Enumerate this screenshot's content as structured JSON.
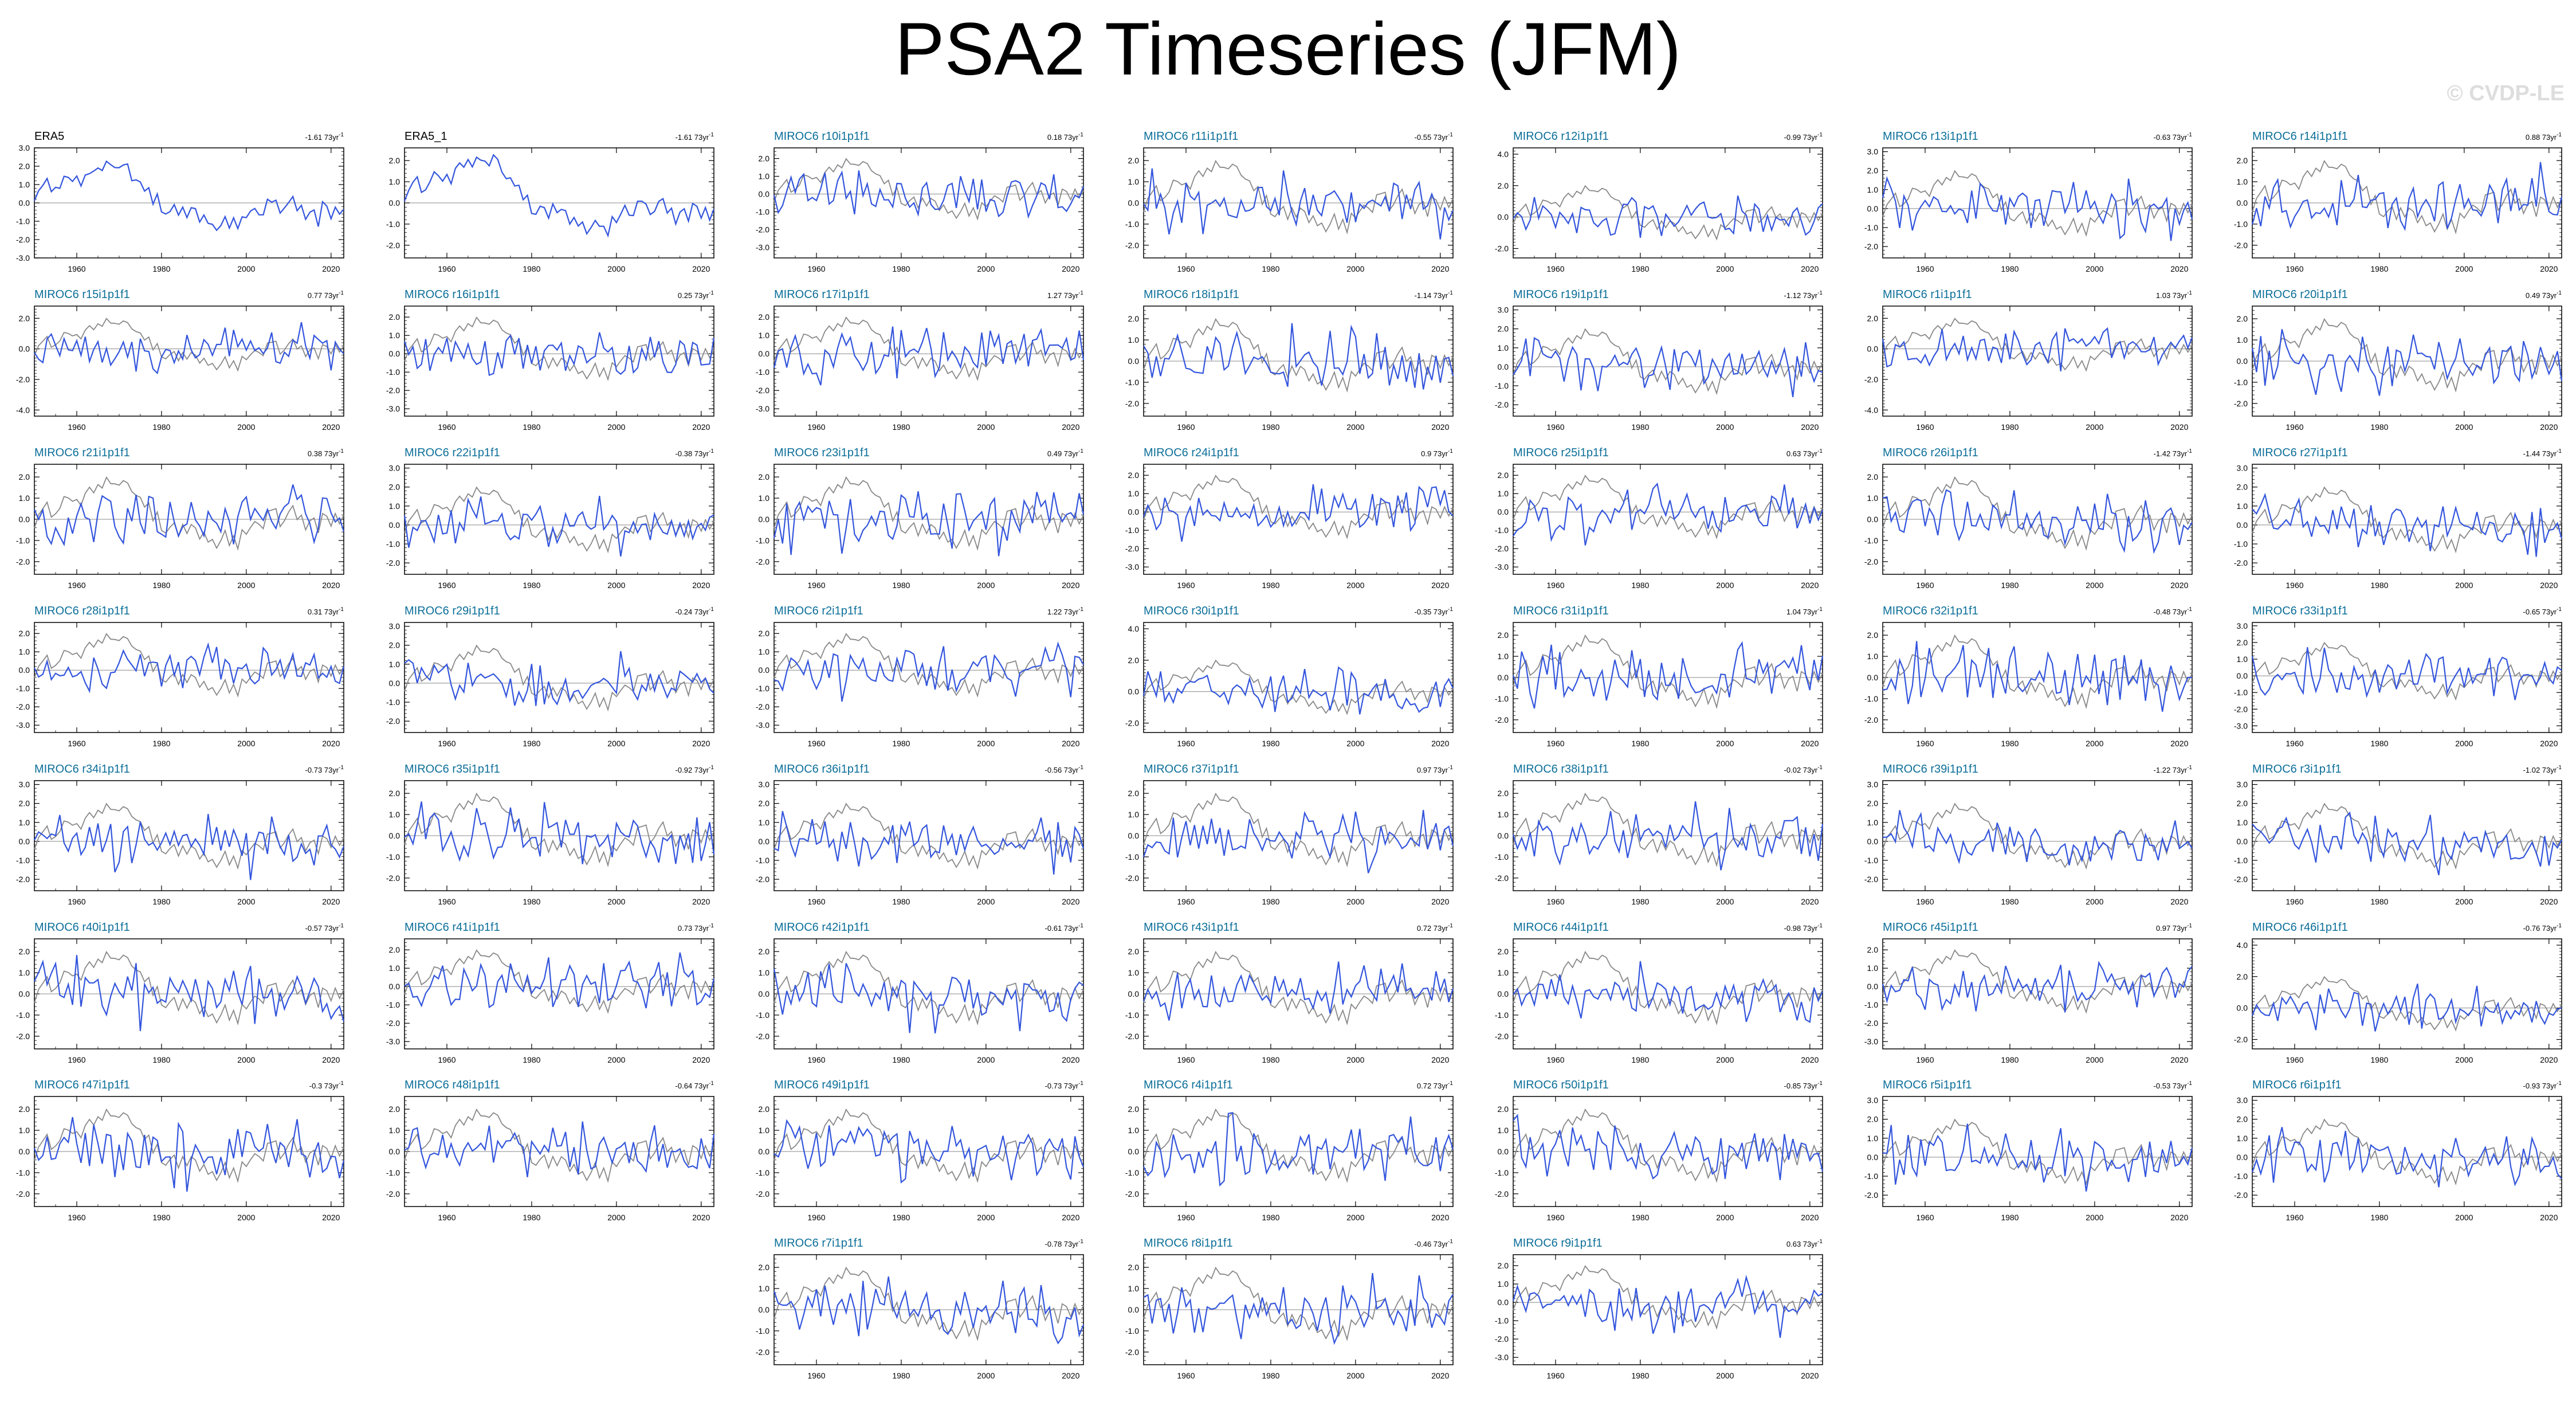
{
  "title": "PSA2 Timeseries (JFM)",
  "watermark": "© CVDP-LE",
  "trend_unit": "73yr",
  "colors": {
    "model": "#3355dd",
    "observed": "#888888",
    "model_label": "#0b6e99",
    "obs_label": "#000000",
    "frame": "#000000",
    "zero": "#888888"
  },
  "x_ticks": [
    "1960",
    "1980",
    "2000",
    "2020"
  ],
  "chart_data": {
    "type": "line",
    "xlim": [
      1950,
      2023
    ],
    "grid": false,
    "description_of_series": "interannual index values, one per year 1950-2023",
    "panels": [
      {
        "label": "ERA5",
        "trend": "-1.61",
        "obs": true,
        "yticks": [
          "3.0",
          "2.0",
          "1.0",
          "0.0",
          "-1.0",
          "-2.0",
          "-3.0"
        ],
        "ylim": [
          -3,
          3
        ]
      },
      {
        "label": "ERA5_1",
        "trend": "-1.61",
        "obs": true,
        "yticks": [
          "2.0",
          "1.0",
          "0.0",
          "-1.0",
          "-2.0"
        ],
        "ylim": [
          -2.6,
          2.6
        ]
      },
      {
        "label": "MIROC6 r10i1p1f1",
        "trend": "0.18",
        "yticks": [
          "2.0",
          "1.0",
          "0.0",
          "-1.0",
          "-2.0",
          "-3.0"
        ],
        "ylim": [
          -3.6,
          2.6
        ]
      },
      {
        "label": "MIROC6 r11i1p1f1",
        "trend": "-0.55",
        "yticks": [
          "2.0",
          "1.0",
          "0.0",
          "-1.0",
          "-2.0"
        ],
        "ylim": [
          -2.6,
          2.6
        ]
      },
      {
        "label": "MIROC6 r12i1p1f1",
        "trend": "-0.99",
        "yticks": [
          "4.0",
          "2.0",
          "0.0",
          "-2.0"
        ],
        "ylim": [
          -2.6,
          4.4
        ]
      },
      {
        "label": "MIROC6 r13i1p1f1",
        "trend": "-0.63",
        "yticks": [
          "3.0",
          "2.0",
          "1.0",
          "0.0",
          "-1.0",
          "-2.0"
        ],
        "ylim": [
          -2.6,
          3.2
        ]
      },
      {
        "label": "MIROC6 r14i1p1f1",
        "trend": "0.88",
        "yticks": [
          "2.0",
          "1.0",
          "0.0",
          "-1.0",
          "-2.0"
        ],
        "ylim": [
          -2.6,
          2.6
        ]
      },
      {
        "label": "MIROC6 r15i1p1f1",
        "trend": "0.77",
        "yticks": [
          "2.0",
          "0.0",
          "-2.0",
          "-4.0"
        ],
        "ylim": [
          -4.4,
          2.8
        ]
      },
      {
        "label": "MIROC6 r16i1p1f1",
        "trend": "0.25",
        "yticks": [
          "2.0",
          "1.0",
          "0.0",
          "-1.0",
          "-2.0",
          "-3.0"
        ],
        "ylim": [
          -3.4,
          2.6
        ]
      },
      {
        "label": "MIROC6 r17i1p1f1",
        "trend": "1.27",
        "yticks": [
          "2.0",
          "1.0",
          "0.0",
          "-1.0",
          "-2.0",
          "-3.0"
        ],
        "ylim": [
          -3.4,
          2.6
        ]
      },
      {
        "label": "MIROC6 r18i1p1f1",
        "trend": "-1.14",
        "yticks": [
          "2.0",
          "1.0",
          "0.0",
          "-1.0",
          "-2.0"
        ],
        "ylim": [
          -2.6,
          2.6
        ]
      },
      {
        "label": "MIROC6 r19i1p1f1",
        "trend": "-1.12",
        "yticks": [
          "3.0",
          "2.0",
          "1.0",
          "0.0",
          "-1.0",
          "-2.0"
        ],
        "ylim": [
          -2.6,
          3.2
        ]
      },
      {
        "label": "MIROC6 r1i1p1f1",
        "trend": "1.03",
        "yticks": [
          "2.0",
          "0.0",
          "-2.0",
          "-4.0"
        ],
        "ylim": [
          -4.4,
          2.8
        ]
      },
      {
        "label": "MIROC6 r20i1p1f1",
        "trend": "0.49",
        "yticks": [
          "2.0",
          "1.0",
          "0.0",
          "-1.0",
          "-2.0"
        ],
        "ylim": [
          -2.6,
          2.6
        ]
      },
      {
        "label": "MIROC6 r21i1p1f1",
        "trend": "0.38",
        "yticks": [
          "2.0",
          "1.0",
          "0.0",
          "-1.0",
          "-2.0"
        ],
        "ylim": [
          -2.6,
          2.6
        ]
      },
      {
        "label": "MIROC6 r22i1p1f1",
        "trend": "-0.38",
        "yticks": [
          "3.0",
          "2.0",
          "1.0",
          "0.0",
          "-1.0",
          "-2.0"
        ],
        "ylim": [
          -2.6,
          3.2
        ]
      },
      {
        "label": "MIROC6 r23i1p1f1",
        "trend": "0.49",
        "yticks": [
          "2.0",
          "1.0",
          "0.0",
          "-1.0",
          "-2.0"
        ],
        "ylim": [
          -2.6,
          2.6
        ]
      },
      {
        "label": "MIROC6 r24i1p1f1",
        "trend": "0.9",
        "yticks": [
          "2.0",
          "1.0",
          "0.0",
          "-1.0",
          "-2.0",
          "-3.0"
        ],
        "ylim": [
          -3.4,
          2.6
        ]
      },
      {
        "label": "MIROC6 r25i1p1f1",
        "trend": "0.63",
        "yticks": [
          "2.0",
          "1.0",
          "0.0",
          "-1.0",
          "-2.0",
          "-3.0"
        ],
        "ylim": [
          -3.4,
          2.6
        ]
      },
      {
        "label": "MIROC6 r26i1p1f1",
        "trend": "-1.42",
        "yticks": [
          "2.0",
          "1.0",
          "0.0",
          "-1.0",
          "-2.0"
        ],
        "ylim": [
          -2.6,
          2.6
        ]
      },
      {
        "label": "MIROC6 r27i1p1f1",
        "trend": "-1.44",
        "yticks": [
          "3.0",
          "2.0",
          "1.0",
          "0.0",
          "-1.0",
          "-2.0"
        ],
        "ylim": [
          -2.6,
          3.2
        ]
      },
      {
        "label": "MIROC6 r28i1p1f1",
        "trend": "0.31",
        "yticks": [
          "2.0",
          "1.0",
          "0.0",
          "-1.0",
          "-2.0",
          "-3.0"
        ],
        "ylim": [
          -3.4,
          2.6
        ]
      },
      {
        "label": "MIROC6 r29i1p1f1",
        "trend": "-0.24",
        "yticks": [
          "3.0",
          "2.0",
          "1.0",
          "0.0",
          "-1.0",
          "-2.0"
        ],
        "ylim": [
          -2.6,
          3.2
        ]
      },
      {
        "label": "MIROC6 r2i1p1f1",
        "trend": "1.22",
        "yticks": [
          "2.0",
          "1.0",
          "0.0",
          "-1.0",
          "-2.0",
          "-3.0"
        ],
        "ylim": [
          -3.4,
          2.6
        ]
      },
      {
        "label": "MIROC6 r30i1p1f1",
        "trend": "-0.35",
        "yticks": [
          "4.0",
          "2.0",
          "0.0",
          "-2.0"
        ],
        "ylim": [
          -2.6,
          4.4
        ]
      },
      {
        "label": "MIROC6 r31i1p1f1",
        "trend": "1.04",
        "yticks": [
          "2.0",
          "1.0",
          "0.0",
          "-1.0",
          "-2.0"
        ],
        "ylim": [
          -2.6,
          2.6
        ]
      },
      {
        "label": "MIROC6 r32i1p1f1",
        "trend": "-0.48",
        "yticks": [
          "2.0",
          "1.0",
          "0.0",
          "-1.0",
          "-2.0"
        ],
        "ylim": [
          -2.6,
          2.6
        ]
      },
      {
        "label": "MIROC6 r33i1p1f1",
        "trend": "-0.65",
        "yticks": [
          "3.0",
          "2.0",
          "1.0",
          "0.0",
          "-1.0",
          "-2.0",
          "-3.0"
        ],
        "ylim": [
          -3.4,
          3.2
        ]
      },
      {
        "label": "MIROC6 r34i1p1f1",
        "trend": "-0.73",
        "yticks": [
          "3.0",
          "2.0",
          "1.0",
          "0.0",
          "-1.0",
          "-2.0"
        ],
        "ylim": [
          -2.6,
          3.2
        ]
      },
      {
        "label": "MIROC6 r35i1p1f1",
        "trend": "-0.92",
        "yticks": [
          "2.0",
          "1.0",
          "0.0",
          "-1.0",
          "-2.0"
        ],
        "ylim": [
          -2.6,
          2.6
        ]
      },
      {
        "label": "MIROC6 r36i1p1f1",
        "trend": "-0.56",
        "yticks": [
          "3.0",
          "2.0",
          "1.0",
          "0.0",
          "-1.0",
          "-2.0"
        ],
        "ylim": [
          -2.6,
          3.2
        ]
      },
      {
        "label": "MIROC6 r37i1p1f1",
        "trend": "0.97",
        "yticks": [
          "2.0",
          "1.0",
          "0.0",
          "-1.0",
          "-2.0"
        ],
        "ylim": [
          -2.6,
          2.6
        ]
      },
      {
        "label": "MIROC6 r38i1p1f1",
        "trend": "-0.02",
        "yticks": [
          "2.0",
          "1.0",
          "0.0",
          "-1.0",
          "-2.0"
        ],
        "ylim": [
          -2.6,
          2.6
        ]
      },
      {
        "label": "MIROC6 r39i1p1f1",
        "trend": "-1.22",
        "yticks": [
          "3.0",
          "2.0",
          "1.0",
          "0.0",
          "-1.0",
          "-2.0"
        ],
        "ylim": [
          -2.6,
          3.2
        ]
      },
      {
        "label": "MIROC6 r3i1p1f1",
        "trend": "-1.02",
        "yticks": [
          "3.0",
          "2.0",
          "1.0",
          "0.0",
          "-1.0",
          "-2.0"
        ],
        "ylim": [
          -2.6,
          3.2
        ]
      },
      {
        "label": "MIROC6 r40i1p1f1",
        "trend": "-0.57",
        "yticks": [
          "2.0",
          "1.0",
          "0.0",
          "-1.0",
          "-2.0"
        ],
        "ylim": [
          -2.6,
          2.6
        ]
      },
      {
        "label": "MIROC6 r41i1p1f1",
        "trend": "0.73",
        "yticks": [
          "2.0",
          "1.0",
          "0.0",
          "-1.0",
          "-2.0",
          "-3.0"
        ],
        "ylim": [
          -3.4,
          2.6
        ]
      },
      {
        "label": "MIROC6 r42i1p1f1",
        "trend": "-0.61",
        "yticks": [
          "2.0",
          "1.0",
          "0.0",
          "-1.0",
          "-2.0"
        ],
        "ylim": [
          -2.6,
          2.6
        ]
      },
      {
        "label": "MIROC6 r43i1p1f1",
        "trend": "0.72",
        "yticks": [
          "2.0",
          "1.0",
          "0.0",
          "-1.0",
          "-2.0"
        ],
        "ylim": [
          -2.6,
          2.6
        ]
      },
      {
        "label": "MIROC6 r44i1p1f1",
        "trend": "-0.98",
        "yticks": [
          "2.0",
          "1.0",
          "0.0",
          "-1.0",
          "-2.0"
        ],
        "ylim": [
          -2.6,
          2.6
        ]
      },
      {
        "label": "MIROC6 r45i1p1f1",
        "trend": "0.97",
        "yticks": [
          "2.0",
          "1.0",
          "0.0",
          "-1.0",
          "-2.0",
          "-3.0"
        ],
        "ylim": [
          -3.4,
          2.6
        ]
      },
      {
        "label": "MIROC6 r46i1p1f1",
        "trend": "-0.76",
        "yticks": [
          "4.0",
          "2.0",
          "0.0",
          "-2.0"
        ],
        "ylim": [
          -2.6,
          4.4
        ]
      },
      {
        "label": "MIROC6 r47i1p1f1",
        "trend": "-0.3",
        "yticks": [
          "2.0",
          "1.0",
          "0.0",
          "-1.0",
          "-2.0"
        ],
        "ylim": [
          -2.6,
          2.6
        ]
      },
      {
        "label": "MIROC6 r48i1p1f1",
        "trend": "-0.64",
        "yticks": [
          "2.0",
          "1.0",
          "0.0",
          "-1.0",
          "-2.0"
        ],
        "ylim": [
          -2.6,
          2.6
        ]
      },
      {
        "label": "MIROC6 r49i1p1f1",
        "trend": "-0.73",
        "yticks": [
          "2.0",
          "1.0",
          "0.0",
          "-1.0",
          "-2.0"
        ],
        "ylim": [
          -2.6,
          2.6
        ]
      },
      {
        "label": "MIROC6 r4i1p1f1",
        "trend": "0.72",
        "yticks": [
          "2.0",
          "1.0",
          "0.0",
          "-1.0",
          "-2.0"
        ],
        "ylim": [
          -2.6,
          2.6
        ]
      },
      {
        "label": "MIROC6 r50i1p1f1",
        "trend": "-0.85",
        "yticks": [
          "2.0",
          "1.0",
          "0.0",
          "-1.0",
          "-2.0"
        ],
        "ylim": [
          -2.6,
          2.6
        ]
      },
      {
        "label": "MIROC6 r5i1p1f1",
        "trend": "-0.53",
        "yticks": [
          "3.0",
          "2.0",
          "1.0",
          "0.0",
          "-1.0",
          "-2.0"
        ],
        "ylim": [
          -2.6,
          3.2
        ]
      },
      {
        "label": "MIROC6 r6i1p1f1",
        "trend": "-0.93",
        "yticks": [
          "3.0",
          "2.0",
          "1.0",
          "0.0",
          "-1.0",
          "-2.0"
        ],
        "ylim": [
          -2.6,
          3.2
        ]
      },
      {
        "label": "MIROC6 r7i1p1f1",
        "trend": "-0.78",
        "yticks": [
          "2.0",
          "1.0",
          "0.0",
          "-1.0",
          "-2.0"
        ],
        "ylim": [
          -2.6,
          2.6
        ]
      },
      {
        "label": "MIROC6 r8i1p1f1",
        "trend": "-0.46",
        "yticks": [
          "2.0",
          "1.0",
          "0.0",
          "-1.0",
          "-2.0"
        ],
        "ylim": [
          -2.6,
          2.6
        ]
      },
      {
        "label": "MIROC6 r9i1p1f1",
        "trend": "0.63",
        "yticks": [
          "2.0",
          "1.0",
          "0.0",
          "-1.0",
          "-2.0",
          "-3.0"
        ],
        "ylim": [
          -3.4,
          2.6
        ]
      }
    ]
  }
}
